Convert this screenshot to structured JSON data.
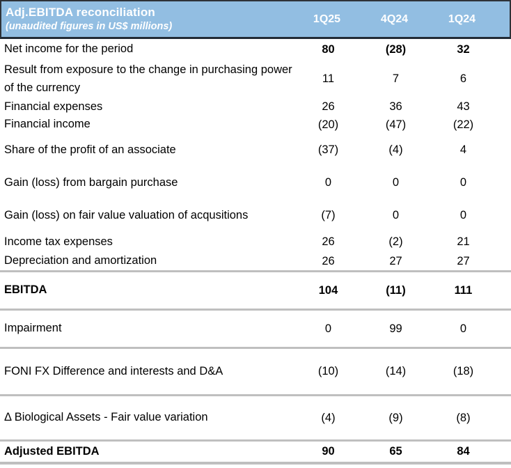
{
  "chart_data": {
    "type": "table",
    "title": "Adj.EBITDA reconciliation",
    "subtitle": "(unaudited figures in US$ millions)",
    "columns": [
      "1Q25",
      "4Q24",
      "1Q24"
    ],
    "rows": [
      {
        "label": "Net income for the period",
        "values": [
          "80",
          "(28)",
          "32"
        ]
      },
      {
        "label": "Result from exposure to the change in purchasing power of the currency",
        "values": [
          "11",
          "7",
          "6"
        ]
      },
      {
        "label": "Financial expenses",
        "values": [
          "26",
          "36",
          "43"
        ]
      },
      {
        "label": "Financial income",
        "values": [
          "(20)",
          "(47)",
          "(22)"
        ]
      },
      {
        "label": "Share of the profit of an associate",
        "values": [
          "(37)",
          "(4)",
          "4"
        ]
      },
      {
        "label": "Gain (loss) from bargain purchase",
        "values": [
          "0",
          "0",
          "0"
        ]
      },
      {
        "label": "Gain (loss) on fair value valuation of acqusitions",
        "values": [
          "(7)",
          "0",
          "0"
        ]
      },
      {
        "label": "Income tax expenses",
        "values": [
          "26",
          "(2)",
          "21"
        ]
      },
      {
        "label": "Depreciation and amortization",
        "values": [
          "26",
          "27",
          "27"
        ]
      },
      {
        "label": "EBITDA",
        "values": [
          "104",
          "(11)",
          "111"
        ]
      },
      {
        "label": "Impairment",
        "values": [
          "0",
          "99",
          "0"
        ]
      },
      {
        "label": "FONI FX Difference and interests and D&A",
        "values": [
          "(10)",
          "(14)",
          "(18)"
        ]
      },
      {
        "label": "Δ Biological Assets - Fair value variation",
        "values": [
          "(4)",
          "(9)",
          "(8)"
        ]
      },
      {
        "label": "Adjusted EBITDA",
        "values": [
          "90",
          "65",
          "84"
        ]
      }
    ],
    "values_numeric": [
      [
        80,
        -28,
        32
      ],
      [
        11,
        7,
        6
      ],
      [
        26,
        36,
        43
      ],
      [
        -20,
        -47,
        -22
      ],
      [
        -37,
        -4,
        4
      ],
      [
        0,
        0,
        0
      ],
      [
        -7,
        0,
        0
      ],
      [
        26,
        -2,
        21
      ],
      [
        26,
        27,
        27
      ],
      [
        104,
        -11,
        111
      ],
      [
        0,
        99,
        0
      ],
      [
        -10,
        -14,
        -18
      ],
      [
        -4,
        -9,
        -8
      ],
      [
        90,
        65,
        84
      ]
    ],
    "emphasized_rows": [
      "Net income for the period",
      "EBITDA",
      "Adjusted EBITDA"
    ],
    "layout_hints": {
      "value_alignment": "center",
      "grid": "section dividers below Depreciation and amortization, EBITDA, Impairment, FONI FX Difference and interests and D&A, Δ Biological Assets - Fair value variation, Adjusted EBITDA"
    }
  },
  "colors": {
    "header_background": "#92BEE2",
    "header_text": "#FFFFFF",
    "header_border": "#2E3238",
    "divider": "#BFBFBF",
    "body_text": "#000000",
    "background": "#FFFFFF"
  }
}
